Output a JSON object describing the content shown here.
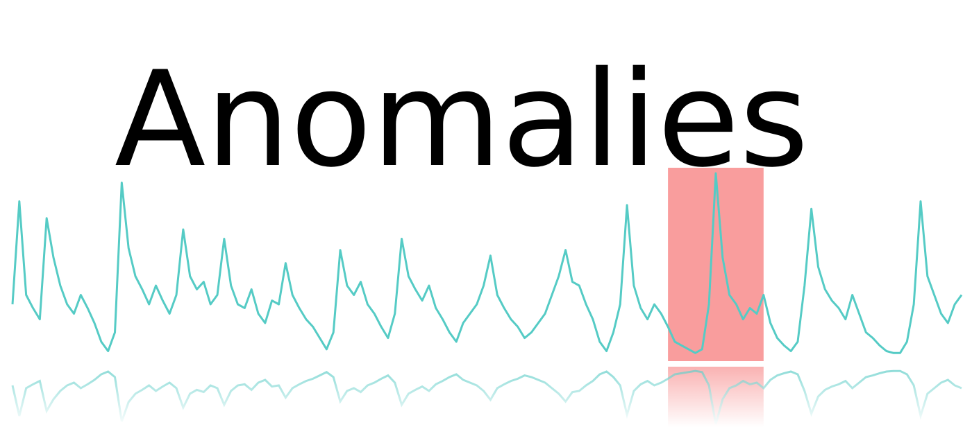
{
  "chart_data": {
    "type": "line",
    "title": "Anomalies",
    "x": [
      0,
      1,
      2,
      3,
      4,
      5,
      6,
      7,
      8,
      9,
      10,
      11,
      12,
      13,
      14,
      15,
      16,
      17,
      18,
      19,
      20,
      21,
      22,
      23,
      24,
      25,
      26,
      27,
      28,
      29,
      30,
      31,
      32,
      33,
      34,
      35,
      36,
      37,
      38,
      39,
      40,
      41,
      42,
      43,
      44,
      45,
      46,
      47,
      48,
      49,
      50,
      51,
      52,
      53,
      54,
      55,
      56,
      57,
      58,
      59,
      60,
      61,
      62,
      63,
      64,
      65,
      66,
      67,
      68,
      69,
      70,
      71,
      72,
      73,
      74,
      75,
      76,
      77,
      78,
      79,
      80,
      81,
      82,
      83,
      84,
      85,
      86,
      87,
      88,
      89,
      90,
      91,
      92,
      93,
      94,
      95,
      96,
      97,
      98,
      99,
      100,
      101,
      102,
      103,
      104,
      105,
      106,
      107,
      108,
      109,
      110,
      111,
      112,
      113,
      114,
      115,
      116,
      117,
      118,
      119,
      120,
      121,
      122,
      123,
      124,
      125,
      126,
      127,
      128,
      129,
      130,
      131,
      132,
      133,
      134,
      135,
      136,
      137,
      138,
      139
    ],
    "series": [
      {
        "color": "#55cbc5",
        "values": [
          30,
          85,
          35,
          28,
          22,
          76,
          55,
          40,
          30,
          25,
          35,
          28,
          20,
          10,
          5,
          15,
          95,
          60,
          45,
          38,
          30,
          40,
          32,
          25,
          35,
          70,
          45,
          38,
          42,
          30,
          35,
          65,
          40,
          30,
          28,
          38,
          25,
          20,
          32,
          30,
          52,
          35,
          28,
          22,
          18,
          12,
          6,
          15,
          59,
          40,
          35,
          42,
          30,
          25,
          18,
          12,
          25,
          65,
          45,
          38,
          32,
          40,
          28,
          22,
          15,
          10,
          20,
          25,
          30,
          40,
          56,
          35,
          28,
          22,
          18,
          12,
          15,
          20,
          25,
          35,
          45,
          59,
          42,
          40,
          30,
          22,
          10,
          5,
          15,
          30,
          83,
          40,
          28,
          22,
          30,
          25,
          18,
          10,
          8,
          6,
          4,
          6,
          30,
          100,
          55,
          35,
          30,
          22,
          28,
          25,
          35,
          20,
          12,
          8,
          5,
          10,
          40,
          81,
          50,
          38,
          32,
          28,
          22,
          35,
          25,
          15,
          12,
          8,
          5,
          4,
          4,
          10,
          30,
          85,
          45,
          35,
          25,
          20,
          30,
          35
        ]
      }
    ],
    "xlim": [
      0,
      139
    ],
    "ylim": [
      0,
      100
    ],
    "highlight": {
      "xlim": [
        96,
        110
      ],
      "color": "#f99d9d"
    }
  }
}
